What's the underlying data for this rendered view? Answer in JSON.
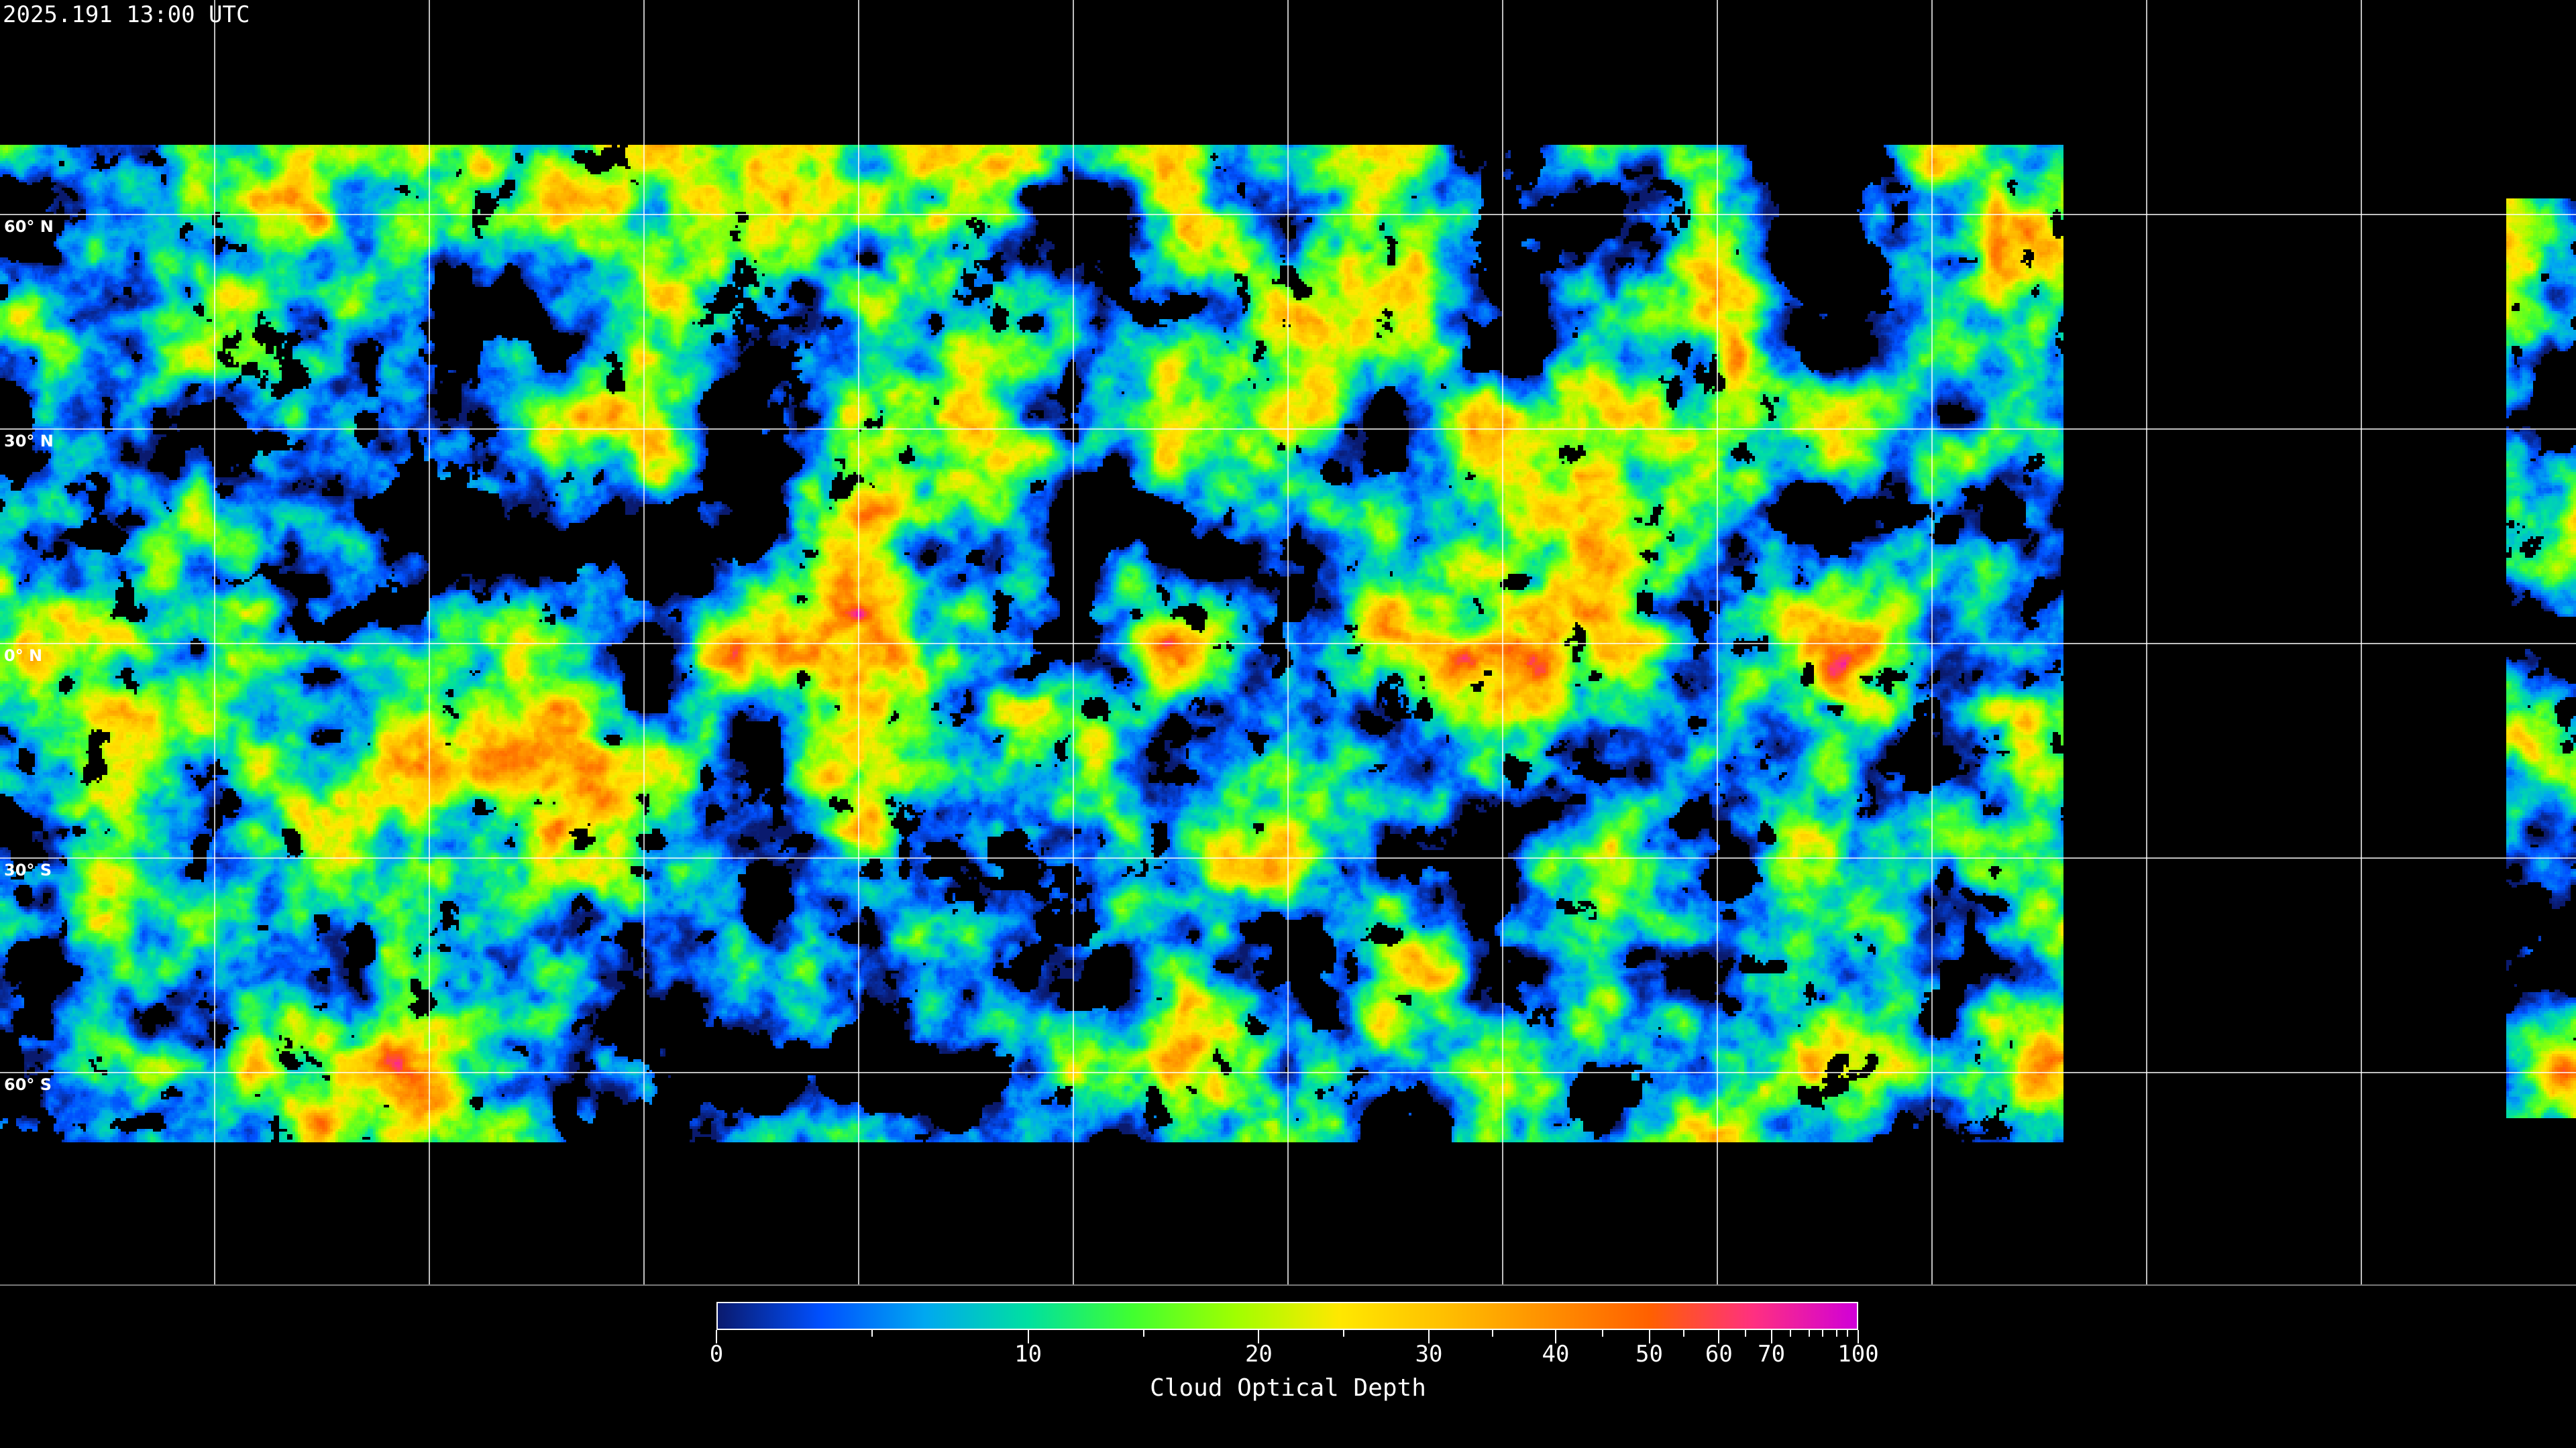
{
  "header": {
    "timestamp": "2025.191 13:00 UTC"
  },
  "map": {
    "projection": "equirectangular",
    "graticule_spacing_deg": 30,
    "latitude_labels": [
      "60° N",
      "30° N",
      "0° N",
      "30° S",
      "60° S"
    ],
    "coastline_color": "#ffffff",
    "grid_color": "#ffffff",
    "no_data_color": "#000000"
  },
  "colorbar": {
    "title": "Cloud Optical Depth",
    "tick_labels": [
      "0",
      "10",
      "20",
      "30",
      "40",
      "50",
      "60",
      "70",
      "100"
    ],
    "range": [
      0,
      100
    ],
    "colors": [
      "#0a1a6e",
      "#0050ff",
      "#00a8f0",
      "#00e0a0",
      "#40ff30",
      "#a0ff00",
      "#ffe800",
      "#ffc000",
      "#ff9000",
      "#ff6000",
      "#ff3080",
      "#d000d8"
    ]
  }
}
